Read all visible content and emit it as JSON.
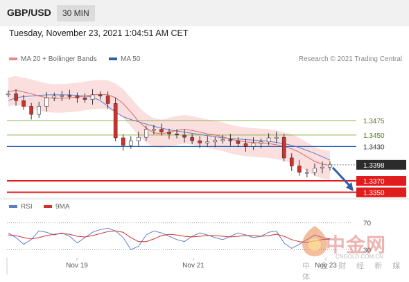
{
  "header": {
    "pair": "GBP/USD",
    "timeframe": "30 MIN",
    "datetime": "Tuesday, November 23, 2021 1:04:51 AM CET"
  },
  "legend": {
    "ma20_label": "MA 20 + Bollinger Bands",
    "ma50_label": "MA 50",
    "rsi_label": "RSI",
    "rsi_ma_label": "9MA",
    "credit": "Research © 2021 Trading Central"
  },
  "colors": {
    "candle_up": "#ffffff",
    "candle_down": "#d0312d",
    "ma20": "#e06666",
    "ma50": "#5b7fc8",
    "band_fill": "#fbdede",
    "resistance": "#8bb34a",
    "pivot": "#2f63b5",
    "support": "#e01c1c",
    "last_price_bg": "#2b2b2b",
    "rsi": "#5b7fc8",
    "rsi_ma": "#d0312d",
    "arrow": "#2f5ea8"
  },
  "watermark": {
    "brand": "中金网",
    "url": "CNGOLD.COM.CN",
    "sub": "中 金 财 经 新 媒 体"
  },
  "chart_data": {
    "type": "line",
    "title": "",
    "xlabel": "",
    "ylabel": "",
    "x_ticks": [
      "Nov 19",
      "Nov 21",
      "Nov 23"
    ],
    "ylim": [
      1.3341,
      1.3555
    ],
    "levels": [
      {
        "value": 1.3475,
        "label": "1.3475",
        "kind": "resistance"
      },
      {
        "value": 1.345,
        "label": "1.3450",
        "kind": "resistance"
      },
      {
        "value": 1.343,
        "label": "1.3430",
        "kind": "pivot"
      },
      {
        "value": 1.3398,
        "label": "1.3398",
        "kind": "last"
      },
      {
        "value": 1.337,
        "label": "1.3370",
        "kind": "support"
      },
      {
        "value": 1.335,
        "label": "1.3350",
        "kind": "support"
      }
    ],
    "series": [
      {
        "name": "MA 20 + Bollinger Bands",
        "values": [
          1.3525,
          1.3528,
          1.3525,
          1.3522,
          1.3518,
          1.3515,
          1.3514,
          1.3514,
          1.3515,
          1.3516,
          1.3518,
          1.352,
          1.3521,
          1.352,
          1.3515,
          1.3505,
          1.349,
          1.3474,
          1.3462,
          1.3454,
          1.3452,
          1.3455,
          1.3458,
          1.346,
          1.3458,
          1.3455,
          1.3452,
          1.345,
          1.3447,
          1.3443,
          1.344,
          1.3438,
          1.3437,
          1.3436,
          1.3435,
          1.3433,
          1.343,
          1.3426,
          1.342,
          1.3412,
          1.3404,
          1.3399,
          1.3397
        ]
      },
      {
        "name": "MA 50",
        "values": [
          1.351,
          1.3515,
          1.3517,
          1.3518,
          1.3519,
          1.352,
          1.352,
          1.352,
          1.352,
          1.3519,
          1.3518,
          1.3516,
          1.351,
          1.35,
          1.349,
          1.3482,
          1.3477,
          1.3473,
          1.3469,
          1.3465,
          1.3462,
          1.3459,
          1.3457,
          1.3455,
          1.3453,
          1.3451,
          1.3449,
          1.3447,
          1.3445,
          1.3444,
          1.3443,
          1.3442,
          1.3441,
          1.344,
          1.3439,
          1.3437,
          1.3435,
          1.3432,
          1.3428,
          1.3423,
          1.3418,
          1.3412,
          1.3406
        ]
      },
      {
        "name": "Price",
        "values": [
          1.3522,
          1.351,
          1.35,
          1.3486,
          1.35,
          1.3515,
          1.3518,
          1.3519,
          1.3518,
          1.3515,
          1.3512,
          1.352,
          1.3518,
          1.3505,
          1.3445,
          1.3432,
          1.344,
          1.3446,
          1.346,
          1.346,
          1.3455,
          1.3452,
          1.345,
          1.3446,
          1.344,
          1.3436,
          1.3438,
          1.3441,
          1.3442,
          1.344,
          1.3435,
          1.343,
          1.3436,
          1.3438,
          1.3445,
          1.3446,
          1.341,
          1.3396,
          1.3385,
          1.3385,
          1.3392,
          1.3394,
          1.3398
        ]
      }
    ],
    "rsi": {
      "levels": [
        70,
        30
      ],
      "rsi_values": [
        55,
        48,
        38,
        45,
        58,
        56,
        52,
        55,
        50,
        40,
        48,
        56,
        60,
        62,
        58,
        48,
        30,
        35,
        52,
        58,
        55,
        50,
        45,
        42,
        50,
        55,
        52,
        48,
        45,
        50,
        55,
        52,
        48,
        50,
        56,
        58,
        40,
        32,
        38,
        45,
        52,
        48,
        46
      ],
      "ma_values": [
        52,
        51,
        48,
        46,
        48,
        51,
        53,
        54,
        53,
        50,
        49,
        51,
        54,
        57,
        58,
        56,
        48,
        42,
        42,
        46,
        51,
        53,
        52,
        50,
        49,
        50,
        51,
        51,
        50,
        49,
        50,
        51,
        51,
        50,
        51,
        53,
        50,
        45,
        42,
        41,
        43,
        45,
        46
      ]
    }
  }
}
